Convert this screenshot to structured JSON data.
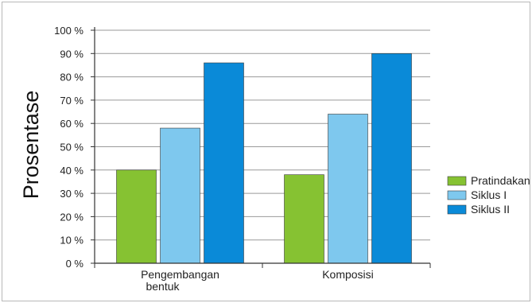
{
  "chart_data": {
    "type": "bar",
    "title": "",
    "xlabel": "",
    "ylabel": "Prosentase",
    "ylim": [
      0,
      100
    ],
    "yticks": [
      0,
      10,
      20,
      30,
      40,
      50,
      60,
      70,
      80,
      90,
      100
    ],
    "ytick_suffix": " %",
    "categories": [
      [
        "Pengembangan",
        "bentuk"
      ],
      [
        "Komposisi"
      ]
    ],
    "series": [
      {
        "name": "Pratindakan",
        "color": "#86c232",
        "values": [
          40,
          38
        ]
      },
      {
        "name": "Siklus I",
        "color": "#7ec8ee",
        "values": [
          58,
          64
        ]
      },
      {
        "name": "Siklus II",
        "color": "#0a8ad8",
        "values": [
          86,
          90
        ]
      }
    ],
    "grid": true,
    "legend_position": "right"
  }
}
